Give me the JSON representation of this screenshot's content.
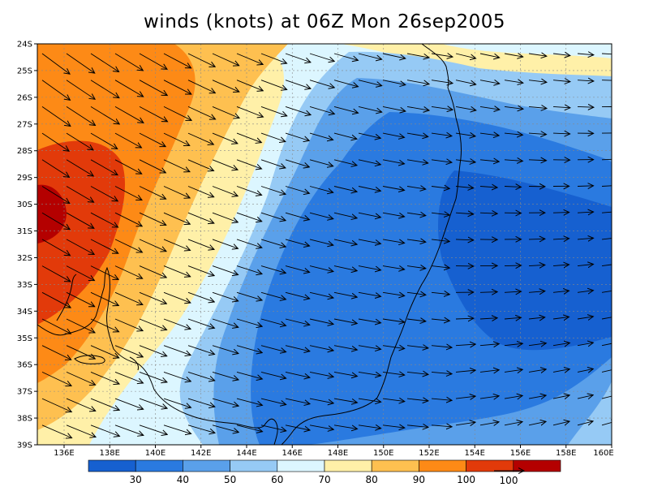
{
  "title": "winds (knots) at 06Z Mon 26sep2005",
  "lat_labels": [
    "24S",
    "25S",
    "26S",
    "27S",
    "28S",
    "29S",
    "30S",
    "31S",
    "32S",
    "33S",
    "34S",
    "35S",
    "36S",
    "37S",
    "38S",
    "39S"
  ],
  "lon_labels": [
    "136E",
    "138E",
    "140E",
    "142E",
    "144E",
    "146E",
    "148E",
    "150E",
    "152E",
    "154E",
    "156E",
    "158E",
    "160E"
  ],
  "colorbar": {
    "labels": [
      "30",
      "40",
      "50",
      "60",
      "70",
      "80",
      "90",
      "100"
    ],
    "colors": [
      "#1660d0",
      "#2a7ae0",
      "#5aa0ea",
      "#96caf5",
      "#dcf6ff",
      "#fff0a8",
      "#fec050",
      "#fd8a16",
      "#e23a0a",
      "#b40000"
    ],
    "vector_reference": "100"
  },
  "field_colors": {
    "c20": "#1660d0",
    "c30": "#2a7ae0",
    "c40": "#5aa0ea",
    "c50": "#96caf5",
    "c60": "#dcf6ff",
    "c70": "#fff0a8",
    "c80": "#fec050",
    "c90": "#fd8a16",
    "c100": "#e23a0a",
    "c110": "#b40000"
  }
}
